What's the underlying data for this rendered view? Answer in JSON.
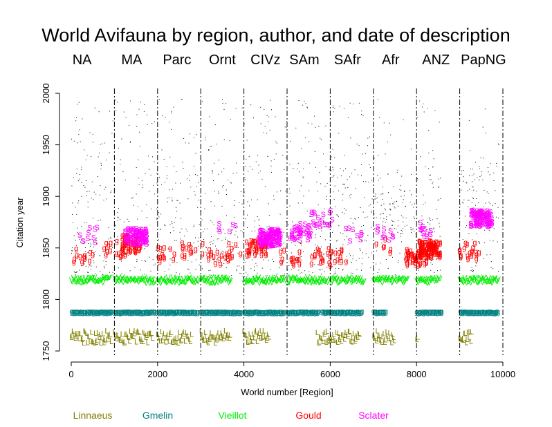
{
  "chart_data": {
    "type": "scatter",
    "title": "World Avifauna by region, author, and date of description",
    "xlabel": "World number [Region]",
    "ylabel": "Citation year",
    "xlim": [
      0,
      10000
    ],
    "ylim": [
      1750,
      2000
    ],
    "x_ticks": [
      "0",
      "2000",
      "4000",
      "6000",
      "8000",
      "10000"
    ],
    "y_ticks": [
      "1750",
      "1800",
      "1850",
      "1900",
      "1950",
      "2000"
    ],
    "grid": false,
    "region_boundaries": [
      1000,
      2000,
      3000,
      4000,
      5000,
      6000,
      7000,
      8000,
      9000,
      10000
    ],
    "regions": [
      {
        "label": "NA",
        "center": 250
      },
      {
        "label": "MA",
        "center": 1400
      },
      {
        "label": "Parc",
        "center": 2450
      },
      {
        "label": "Ornt",
        "center": 3500
      },
      {
        "label": "CIVz",
        "center": 4500
      },
      {
        "label": "SAm",
        "center": 5400
      },
      {
        "label": "SAfr",
        "center": 6400
      },
      {
        "label": "Afr",
        "center": 7400
      },
      {
        "label": "ANZ",
        "center": 8450
      },
      {
        "label": "PapNG",
        "center": 9550
      }
    ],
    "legend_position": "bottom",
    "series": [
      {
        "name": "Linnaeus",
        "marker": "L",
        "color": "#808000",
        "year_range": [
          1758,
          1770
        ],
        "segments": [
          [
            0,
            950
          ],
          [
            1000,
            1900
          ],
          [
            2000,
            2800
          ],
          [
            3000,
            3700
          ],
          [
            4000,
            4600
          ],
          [
            5700,
            6700
          ],
          [
            7000,
            7500
          ],
          [
            8000,
            8050
          ],
          [
            9000,
            9300
          ]
        ]
      },
      {
        "name": "Gmelin",
        "marker": "g",
        "color": "#008080",
        "year_range": [
          1788,
          1789
        ],
        "segments": [
          [
            0,
            950
          ],
          [
            1000,
            1950
          ],
          [
            2000,
            2950
          ],
          [
            3000,
            3950
          ],
          [
            4000,
            4950
          ],
          [
            5000,
            5750
          ],
          [
            5800,
            6750
          ],
          [
            7000,
            7300
          ],
          [
            8000,
            8600
          ],
          [
            9000,
            9900
          ]
        ]
      },
      {
        "name": "Vieillot",
        "marker": "V",
        "color": "#00ee00",
        "year_range": [
          1816,
          1822
        ],
        "segments": [
          [
            0,
            900
          ],
          [
            1000,
            1950
          ],
          [
            2000,
            2950
          ],
          [
            3000,
            3700
          ],
          [
            4000,
            4950
          ],
          [
            5000,
            5950
          ],
          [
            6000,
            6800
          ],
          [
            7000,
            7800
          ],
          [
            8000,
            8550
          ],
          [
            9000,
            9900
          ]
        ]
      },
      {
        "name": "Gould",
        "marker": "g",
        "color": "#ff0000",
        "year_range": [
          1836,
          1866
        ],
        "clusters": [
          [
            300,
            1843,
            12
          ],
          [
            1000,
            1850,
            14
          ],
          [
            1400,
            1855,
            60
          ],
          [
            2200,
            1845,
            12
          ],
          [
            2800,
            1848,
            14
          ],
          [
            3400,
            1843,
            16
          ],
          [
            3900,
            1848,
            10
          ],
          [
            4300,
            1852,
            40
          ],
          [
            5100,
            1842,
            14
          ],
          [
            5800,
            1842,
            18
          ],
          [
            6200,
            1845,
            10
          ],
          [
            7300,
            1853,
            6
          ],
          [
            8000,
            1842,
            50
          ],
          [
            8300,
            1850,
            90
          ],
          [
            9200,
            1848,
            20
          ]
        ]
      },
      {
        "name": "Sclater",
        "marker": "S",
        "color": "#ff00ff",
        "year_range": [
          1856,
          1875
        ],
        "clusters": [
          [
            400,
            1862,
            10
          ],
          [
            1500,
            1861,
            90
          ],
          [
            3600,
            1866,
            6
          ],
          [
            4600,
            1860,
            120
          ],
          [
            5300,
            1866,
            40
          ],
          [
            5800,
            1879,
            20
          ],
          [
            6500,
            1864,
            8
          ],
          [
            7300,
            1866,
            10
          ],
          [
            8300,
            1868,
            12
          ],
          [
            9500,
            1879,
            100
          ]
        ]
      },
      {
        "name": "",
        "marker": "dot",
        "color": "#000000",
        "year_range": [
          1760,
          1995
        ]
      }
    ]
  }
}
